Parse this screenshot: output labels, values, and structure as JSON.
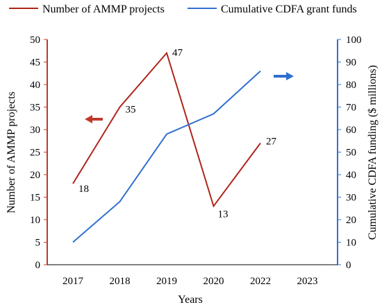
{
  "chart_data": {
    "type": "line",
    "categories": [
      "2017",
      "2018",
      "2019",
      "2020",
      "2022",
      "2023"
    ],
    "series": [
      {
        "name": "Number of AMMP projects",
        "axis": "left",
        "color": "#b02418",
        "values": [
          18,
          35,
          47,
          13,
          27,
          null
        ],
        "labels": [
          "18",
          "35",
          "47",
          "13",
          "27",
          ""
        ]
      },
      {
        "name": "Cumulative CDFA grant funds",
        "axis": "right",
        "color": "#2e6fcf",
        "values": [
          10,
          28,
          58,
          67,
          86,
          null
        ]
      }
    ],
    "xlabel": "Years",
    "ylabel_left": "Number of AMMP projects",
    "ylabel_right": "Cumulative CDFA funding ($ millions)",
    "ylim_left": [
      0,
      50
    ],
    "ylim_right": [
      0,
      100
    ],
    "yticks_left": [
      "0",
      "5",
      "10",
      "15",
      "20",
      "25",
      "30",
      "35",
      "40",
      "45",
      "50"
    ],
    "yticks_right": [
      "0",
      "10",
      "20",
      "30",
      "40",
      "50",
      "60",
      "70",
      "80",
      "90",
      "100"
    ],
    "left_axis_color": "#c0392b",
    "right_axis_color": "#2e6fcf",
    "grid": false,
    "legend_position": "top"
  }
}
